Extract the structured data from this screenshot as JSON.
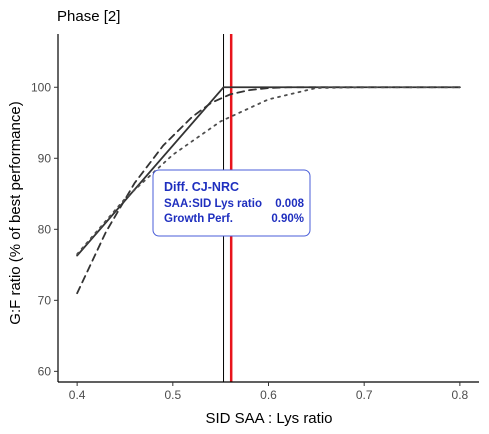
{
  "chart_data": {
    "type": "line",
    "panel_title": "Phase [2]",
    "xlabel": "SID SAA : Lys ratio",
    "ylabel": "G:F ratio (% of best performance)",
    "xlim": [
      0.38,
      0.82
    ],
    "ylim": [
      58.5,
      107.5
    ],
    "x_ticks": [
      "0.4",
      "0.5",
      "0.6",
      "0.7",
      "0.8"
    ],
    "y_ticks": [
      "60",
      "70",
      "80",
      "90",
      "100"
    ],
    "grid": false,
    "series": [
      {
        "style": "solid",
        "color": "#333333",
        "x": [
          0.4,
          0.553,
          0.8
        ],
        "y": [
          76.3,
          100,
          100
        ]
      },
      {
        "style": "dashed",
        "color": "#333333",
        "x": [
          0.4,
          0.43,
          0.46,
          0.49,
          0.52,
          0.54,
          0.56,
          0.58,
          0.6,
          0.62,
          0.65,
          0.7,
          0.75,
          0.8
        ],
        "y": [
          71.0,
          79.6,
          86.5,
          91.8,
          95.8,
          97.8,
          99.0,
          99.6,
          99.9,
          100,
          100,
          100,
          100,
          100
        ]
      },
      {
        "style": "dotted",
        "color": "#4d4d4d",
        "x": [
          0.4,
          0.45,
          0.5,
          0.55,
          0.6,
          0.65,
          0.7,
          0.75,
          0.8
        ],
        "y": [
          76.5,
          84.3,
          90.5,
          95.2,
          98.3,
          99.9,
          100,
          100,
          100
        ]
      }
    ],
    "vlines": [
      {
        "x": 0.553,
        "color": "#000000",
        "width": 1
      },
      {
        "x": 0.561,
        "color": "#e8141c",
        "width": 2.5
      }
    ],
    "annotation": {
      "title": "Diff. CJ-NRC",
      "rows": [
        {
          "label": "SAA:SID Lys ratio",
          "value": "0.008"
        },
        {
          "label": "Growth Perf.",
          "value": "0.90%"
        }
      ]
    }
  }
}
